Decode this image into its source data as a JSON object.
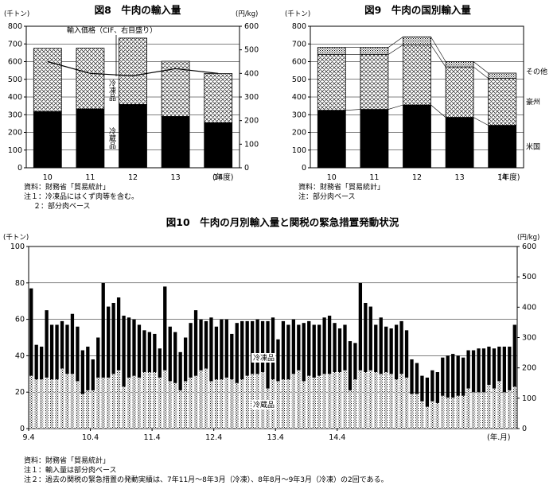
{
  "colors": {
    "ink": "#000000",
    "background": "#ffffff"
  },
  "chart_data": [
    {
      "id": "fig8",
      "type": "bar",
      "stacked": true,
      "title": "図8　牛肉の輸入量",
      "left_unit": "(千トン)",
      "right_unit": "(円/kg)",
      "categories": [
        "10",
        "11",
        "12",
        "13",
        "14"
      ],
      "category_suffix": "(年度)",
      "ylim": [
        0,
        800
      ],
      "y2lim": [
        0,
        600
      ],
      "yticks": [
        0,
        100,
        200,
        300,
        400,
        500,
        600,
        700,
        800
      ],
      "y2ticks": [
        0,
        100,
        200,
        300,
        400,
        500,
        600
      ],
      "series": [
        {
          "name": "冷蔵品",
          "pattern": "solid",
          "values": [
            318,
            333,
            358,
            290,
            255
          ]
        },
        {
          "name": "冷凍品",
          "pattern": "crosshatch",
          "values": [
            357,
            343,
            375,
            312,
            278
          ]
        }
      ],
      "line": {
        "name": "輸入価格（CIF、右目盛り）",
        "axis": "right",
        "values": [
          450,
          400,
          390,
          420,
          400
        ]
      },
      "labels": {
        "frozen": "冷凍品",
        "chilled": "冷蔵品",
        "price": "輸入価格（CIF、右目盛り）"
      },
      "notes": [
        "資料：財務省「貿易統計」",
        "注１：冷凍品にはくず肉等を含む。",
        "２：部分肉ベース"
      ]
    },
    {
      "id": "fig9",
      "type": "bar",
      "stacked": true,
      "title": "図9　牛肉の国別輸入量",
      "left_unit": "(千トン)",
      "categories": [
        "10",
        "11",
        "12",
        "13",
        "14"
      ],
      "category_suffix": "(年度)",
      "ylim": [
        0,
        800
      ],
      "yticks": [
        0,
        100,
        200,
        300,
        400,
        500,
        600,
        700,
        800
      ],
      "series": [
        {
          "name": "米国",
          "pattern": "solid",
          "values": [
            325,
            330,
            355,
            285,
            240
          ]
        },
        {
          "name": "豪州",
          "pattern": "crosshatch",
          "values": [
            315,
            310,
            340,
            285,
            265
          ]
        },
        {
          "name": "その他",
          "pattern": "dots",
          "values": [
            40,
            40,
            45,
            30,
            30
          ]
        }
      ],
      "notes": [
        "資料：財務省「貿易統計」",
        "注：部分肉ベース"
      ]
    },
    {
      "id": "fig10",
      "type": "bar",
      "stacked": true,
      "title": "図10　牛肉の月別輸入量と関税の緊急措置発動状況",
      "left_unit": "(千トン)",
      "right_unit": "(円/kg)",
      "ylim": [
        0,
        100
      ],
      "y2lim": [
        0,
        600
      ],
      "yticks": [
        0,
        20,
        40,
        60,
        80,
        100
      ],
      "y2ticks": [
        0,
        100,
        200,
        300,
        400,
        500,
        600
      ],
      "x_tick_labels": [
        "9.4",
        "10.4",
        "11.4",
        "12.4",
        "13.4",
        "14.4"
      ],
      "x_suffix": "(年.月)",
      "series": [
        {
          "name": "冷蔵品",
          "pattern": "dots",
          "values": [
            29,
            27,
            27,
            28,
            27,
            27,
            33,
            30,
            30,
            26,
            19,
            21,
            21,
            28,
            28,
            28,
            30,
            32,
            23,
            28,
            29,
            28,
            31,
            31,
            31,
            28,
            32,
            26,
            25,
            21,
            26,
            28,
            29,
            32,
            33,
            26,
            27,
            27,
            28,
            27,
            25,
            27,
            29,
            30,
            30,
            31,
            22,
            27,
            26,
            27,
            27,
            30,
            32,
            26,
            29,
            28,
            29,
            30,
            30,
            31,
            31,
            32,
            21,
            27,
            32,
            31,
            32,
            31,
            30,
            31,
            30,
            27,
            30,
            28,
            19,
            19,
            15,
            12,
            15,
            14,
            18,
            17,
            17,
            18,
            18,
            22,
            20,
            20,
            20,
            24,
            22,
            26,
            20,
            21,
            23
          ]
        },
        {
          "name": "冷凍品",
          "pattern": "solid",
          "values": [
            48,
            19,
            18,
            37,
            30,
            30,
            26,
            27,
            33,
            30,
            24,
            24,
            17,
            22,
            52,
            39,
            39,
            40,
            39,
            33,
            31,
            29,
            23,
            22,
            21,
            16,
            46,
            30,
            28,
            21,
            24,
            30,
            36,
            28,
            26,
            35,
            29,
            33,
            32,
            25,
            33,
            32,
            30,
            29,
            30,
            28,
            37,
            34,
            23,
            32,
            30,
            30,
            25,
            32,
            30,
            29,
            28,
            31,
            32,
            27,
            24,
            25,
            27,
            20,
            48,
            38,
            35,
            26,
            31,
            25,
            25,
            30,
            29,
            26,
            19,
            17,
            14,
            16,
            17,
            17,
            21,
            23,
            24,
            22,
            21,
            21,
            23,
            24,
            24,
            21,
            22,
            19,
            25,
            24,
            34
          ]
        }
      ],
      "labels": {
        "frozen": "冷凍品",
        "chilled": "冷蔵品"
      },
      "notes": [
        "資料：財務省「貿易統計」",
        "注１：輸入量は部分肉ベース",
        "注２：過去の関税の緊急措置の発動実績は、7年11月～8年3月（冷凍）、8年8月～9年3月（冷凍）の2回である。"
      ]
    }
  ]
}
